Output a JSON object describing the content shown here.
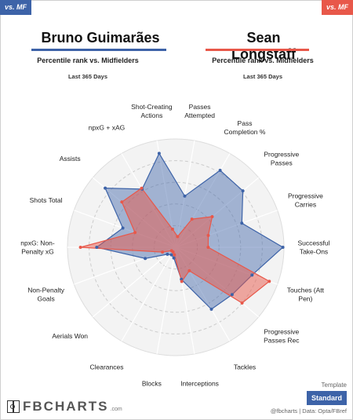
{
  "tags": {
    "left": "vs. MF",
    "right": "vs. MF"
  },
  "players": [
    {
      "name": "Bruno Guimarães",
      "subtitle": "Percentile rank vs. Midfielders",
      "period": "Last 365 Days",
      "color": "#3d63a8"
    },
    {
      "name": "Sean Longstaff",
      "subtitle": "Percentile rank vs. Midfielders",
      "period": "Last 365 Days",
      "color": "#e8584a"
    }
  ],
  "template": {
    "label": "Template",
    "button": "Standard"
  },
  "brand": {
    "logo": "FBCHARTS",
    "domain": ".com"
  },
  "credit": "@fbcharts | Data: Opta/FBref",
  "chart_data": {
    "type": "radar",
    "range": [
      0,
      100
    ],
    "grid": true,
    "axes": [
      "Passes Attempted",
      "Pass Completion %",
      "Progressive Passes",
      "Progressive Carries",
      "Successful Take-Ons",
      "Touches (Att Pen)",
      "Progressive Passes Rec",
      "Tackles",
      "Interceptions",
      "Blocks",
      "Clearances",
      "Aerials Won",
      "Non-Penalty Goals",
      "npxG: Non-Penalty xG",
      "Shots Total",
      "Assists",
      "npxG + xAG",
      "Shot-Creating Actions"
    ],
    "series": [
      {
        "name": "Bruno Guimarães",
        "color": "#3d63a8",
        "values": [
          48,
          82,
          81,
          65,
          99,
          75,
          68,
          66,
          30,
          10,
          8,
          10,
          30,
          73,
          52,
          85,
          62,
          88
        ]
      },
      {
        "name": "Sean Longstaff",
        "color": "#e8584a",
        "values": [
          10,
          30,
          44,
          32,
          30,
          92,
          80,
          25,
          32,
          7,
          5,
          5,
          13,
          88,
          40,
          65,
          63,
          17
        ]
      }
    ]
  }
}
